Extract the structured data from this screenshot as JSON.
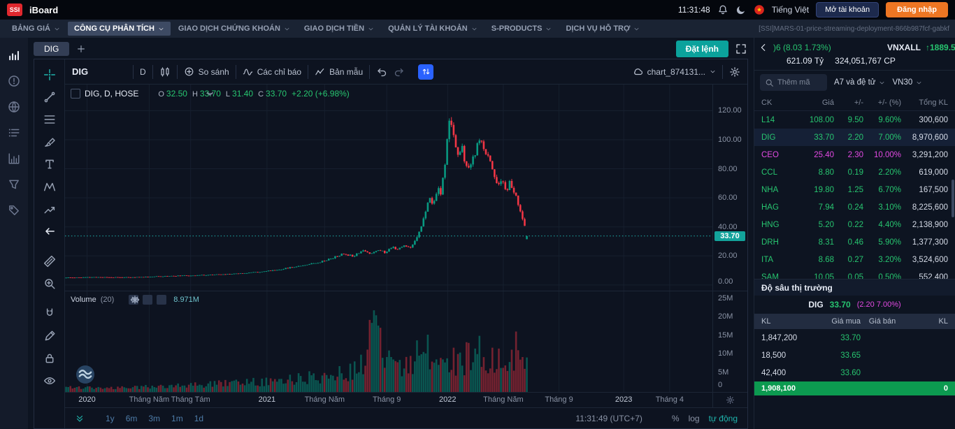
{
  "colors": {
    "accent": "#13a39b",
    "up": "#27c46f",
    "ceiling": "#e34ae3",
    "down": "#f23645",
    "candle_up": "#089981",
    "candle_down": "#f23645",
    "orange": "#ee7623"
  },
  "topbar": {
    "logo": "SSI",
    "app_name": "iBoard",
    "clock": "11:31:48",
    "language": "Tiếng Việt",
    "open_account": "Mở tài khoản",
    "login": "Đăng nhập"
  },
  "menubar": {
    "items": [
      "BẢNG GIÁ",
      "CÔNG CỤ PHÂN TÍCH",
      "GIAO DỊCH CHỨNG KHOÁN",
      "GIAO DỊCH TIỀN",
      "QUẢN LÝ TÀI KHOẢN",
      "S-PRODUCTS",
      "DỊCH VỤ HỖ TRỢ"
    ],
    "active_index": 1,
    "deployment_tag": "[SSI]MARS-01-price-streaming-deployment-866b987fcf-gabkf"
  },
  "sidebar": {
    "icons": [
      {
        "icon": "bars-signal",
        "name": "price-board-icon"
      },
      {
        "icon": "alert",
        "name": "alerts-icon"
      },
      {
        "icon": "globe",
        "name": "global-markets-icon"
      },
      {
        "icon": "rows",
        "name": "watchlist-icon"
      },
      {
        "icon": "chart-col",
        "name": "analysis-icon"
      },
      {
        "icon": "funnel",
        "name": "screener-icon"
      },
      {
        "icon": "tag",
        "name": "tags-icon"
      }
    ]
  },
  "chart_tabs": {
    "active_tab": "DIG",
    "order_button": "Đặt lệnh"
  },
  "chart_toolbar": {
    "symbol": "DIG",
    "interval": "D",
    "compare": "So sánh",
    "indicators": "Các chỉ báo",
    "templates": "Bản mẫu",
    "layout_name": "chart_874131..."
  },
  "draw_toolbar": {
    "groups": [
      [
        {
          "icon": "crosshair",
          "name": "crosshair-tool",
          "active": true
        },
        {
          "icon": "trendline",
          "name": "trend-line-tool"
        },
        {
          "icon": "fib",
          "name": "fib-retracement-tool"
        },
        {
          "icon": "brush",
          "name": "brush-tool"
        },
        {
          "icon": "text",
          "name": "text-tool"
        },
        {
          "icon": "xabcd",
          "name": "pattern-tool"
        },
        {
          "icon": "forecast",
          "name": "forecast-tool"
        },
        {
          "icon": "arrow-left",
          "name": "back-arrow-tool",
          "white": true
        }
      ],
      [
        {
          "icon": "ruler",
          "name": "measure-tool"
        },
        {
          "icon": "zoom",
          "name": "zoom-in-tool"
        }
      ],
      [
        {
          "icon": "magnet",
          "name": "magnet-tool"
        },
        {
          "icon": "pencil",
          "name": "edit-tool"
        },
        {
          "icon": "lock",
          "name": "lock-all-tool"
        },
        {
          "icon": "eye",
          "name": "hide-all-tool"
        }
      ]
    ]
  },
  "legend": {
    "title": "DIG, D, HOSE",
    "labels": [
      "O",
      "H",
      "L",
      "C"
    ],
    "o": "32.50",
    "h": "33.70",
    "l": "31.40",
    "c": "33.70",
    "change": "+2.20 (+6.98%)"
  },
  "volume_pane": {
    "label": "Volume",
    "period": "(20)",
    "value": "8.971M"
  },
  "bottom_bar": {
    "ranges": [
      "1y",
      "6m",
      "3m",
      "1m",
      "1d"
    ],
    "clock": "11:31:49 (UTC+7)",
    "percent": "%",
    "log": "log",
    "auto": "tự động"
  },
  "chart_data": {
    "type": "candlestick",
    "symbol": "DIG",
    "interval": "D",
    "exchange": "HOSE",
    "ohlc": {
      "open": 32.5,
      "high": 33.7,
      "low": 31.4,
      "close": 33.7,
      "change": 2.2,
      "change_pct": 6.98
    },
    "last_price": 33.7,
    "candle_count": 215,
    "t_end": 0.715,
    "price_gridlines": [
      0,
      20,
      40,
      60,
      80,
      100,
      120
    ],
    "price_axis": [
      {
        "label": "120.00",
        "v": 120
      },
      {
        "label": "100.00",
        "v": 100
      },
      {
        "label": "80.00",
        "v": 80
      },
      {
        "label": "60.00",
        "v": 60
      },
      {
        "label": "40.00",
        "v": 40
      },
      {
        "label": "20.00",
        "v": 20
      },
      {
        "label": "0.00",
        "v": 0
      }
    ],
    "volume_axis": [
      {
        "label": "25M",
        "v": 25
      },
      {
        "label": "20M",
        "v": 20
      },
      {
        "label": "15M",
        "v": 15
      },
      {
        "label": "10M",
        "v": 10
      },
      {
        "label": "5M",
        "v": 5
      },
      {
        "label": "0",
        "v": 0
      }
    ],
    "price_anchors": [
      [
        0,
        5
      ],
      [
        0.05,
        5.4
      ],
      [
        0.1,
        5.2
      ],
      [
        0.15,
        6
      ],
      [
        0.2,
        6.6
      ],
      [
        0.25,
        7.4
      ],
      [
        0.3,
        9
      ],
      [
        0.33,
        10.5
      ],
      [
        0.36,
        13
      ],
      [
        0.39,
        15.5
      ],
      [
        0.41,
        18
      ],
      [
        0.43,
        21.5
      ],
      [
        0.445,
        20
      ],
      [
        0.46,
        24
      ],
      [
        0.47,
        21.5
      ],
      [
        0.485,
        24.5
      ],
      [
        0.495,
        22
      ],
      [
        0.505,
        26.5
      ],
      [
        0.515,
        24.5
      ],
      [
        0.525,
        27.5
      ],
      [
        0.532,
        25.5
      ],
      [
        0.54,
        30
      ],
      [
        0.548,
        38
      ],
      [
        0.556,
        48
      ],
      [
        0.563,
        60
      ],
      [
        0.569,
        55
      ],
      [
        0.575,
        67
      ],
      [
        0.58,
        62
      ],
      [
        0.585,
        76
      ],
      [
        0.589,
        92
      ],
      [
        0.592,
        106
      ],
      [
        0.595,
        117
      ],
      [
        0.599,
        108
      ],
      [
        0.603,
        97
      ],
      [
        0.608,
        87
      ],
      [
        0.613,
        94
      ],
      [
        0.618,
        85
      ],
      [
        0.623,
        78
      ],
      [
        0.63,
        87
      ],
      [
        0.637,
        95
      ],
      [
        0.643,
        99
      ],
      [
        0.649,
        93
      ],
      [
        0.655,
        87
      ],
      [
        0.66,
        80
      ],
      [
        0.665,
        74
      ],
      [
        0.67,
        68
      ],
      [
        0.676,
        72
      ],
      [
        0.682,
        66
      ],
      [
        0.688,
        71
      ],
      [
        0.694,
        63
      ],
      [
        0.7,
        56
      ],
      [
        0.705,
        48
      ],
      [
        0.71,
        40
      ],
      [
        0.715,
        33.7
      ]
    ],
    "volume_anchors": [
      [
        0,
        1.2
      ],
      [
        0.08,
        0.9
      ],
      [
        0.15,
        1.5
      ],
      [
        0.22,
        2.2
      ],
      [
        0.28,
        2.8
      ],
      [
        0.33,
        3.5
      ],
      [
        0.38,
        4.5
      ],
      [
        0.42,
        6
      ],
      [
        0.45,
        8
      ],
      [
        0.465,
        10
      ],
      [
        0.478,
        24.5
      ],
      [
        0.484,
        19
      ],
      [
        0.49,
        13
      ],
      [
        0.5,
        9.5
      ],
      [
        0.52,
        8
      ],
      [
        0.54,
        11
      ],
      [
        0.56,
        13
      ],
      [
        0.58,
        9
      ],
      [
        0.6,
        10
      ],
      [
        0.62,
        12
      ],
      [
        0.64,
        13.5
      ],
      [
        0.66,
        10
      ],
      [
        0.68,
        12
      ],
      [
        0.7,
        14
      ],
      [
        0.71,
        11
      ],
      [
        0.715,
        9
      ]
    ],
    "time_labels": [
      {
        "label": "2020",
        "f": 0.034,
        "year": true
      },
      {
        "label": "Tháng Năm",
        "f": 0.13
      },
      {
        "label": "Tháng Tám",
        "f": 0.194
      },
      {
        "label": "2021",
        "f": 0.312,
        "year": true
      },
      {
        "label": "Tháng Năm",
        "f": 0.401
      },
      {
        "label": "Tháng 9",
        "f": 0.497
      },
      {
        "label": "2022",
        "f": 0.591,
        "year": true
      },
      {
        "label": "Tháng Năm",
        "f": 0.677
      },
      {
        "label": "Tháng 9",
        "f": 0.763
      },
      {
        "label": "2023",
        "f": 0.863,
        "year": true
      },
      {
        "label": "Tháng 4",
        "f": 0.934
      }
    ]
  },
  "right_panel": {
    "index": {
      "ticker_text": ")6 (8.03 1.73%)",
      "name": "VNXALL",
      "value": "↑1889.5",
      "line2_a": "621.09 Tỷ",
      "line2_b": "324,051,767 CP"
    },
    "watchlist": {
      "search_placeholder": "Thêm mã",
      "group": "A7 và đệ tử",
      "group2": "VN30",
      "columns": [
        "CK",
        "Giá",
        "+/-",
        "+/- (%)",
        "Tổng KL"
      ],
      "rows": [
        {
          "ck": "L14",
          "gia": "108.00",
          "chg": "9.50",
          "pct": "9.60%",
          "kl": "300,600",
          "state": "up"
        },
        {
          "ck": "DIG",
          "gia": "33.70",
          "chg": "2.20",
          "pct": "7.00%",
          "kl": "8,970,600",
          "state": "up",
          "highlight": true
        },
        {
          "ck": "CEO",
          "gia": "25.40",
          "chg": "2.30",
          "pct": "10.00%",
          "kl": "3,291,200",
          "state": "ceil"
        },
        {
          "ck": "CCL",
          "gia": "8.80",
          "chg": "0.19",
          "pct": "2.20%",
          "kl": "619,000",
          "state": "up"
        },
        {
          "ck": "NHA",
          "gia": "19.80",
          "chg": "1.25",
          "pct": "6.70%",
          "kl": "167,500",
          "state": "up"
        },
        {
          "ck": "HAG",
          "gia": "7.94",
          "chg": "0.24",
          "pct": "3.10%",
          "kl": "8,225,600",
          "state": "up"
        },
        {
          "ck": "HNG",
          "gia": "5.20",
          "chg": "0.22",
          "pct": "4.40%",
          "kl": "2,138,900",
          "state": "up"
        },
        {
          "ck": "DRH",
          "gia": "8.31",
          "chg": "0.46",
          "pct": "5.90%",
          "kl": "1,377,300",
          "state": "up"
        },
        {
          "ck": "ITA",
          "gia": "8.68",
          "chg": "0.27",
          "pct": "3.20%",
          "kl": "3,524,600",
          "state": "up"
        },
        {
          "ck": "SAM",
          "gia": "10.05",
          "chg": "0.05",
          "pct": "0.50%",
          "kl": "552,400",
          "state": "up"
        }
      ]
    },
    "depth": {
      "title": "Độ sâu thị trường",
      "symbol": "DIG",
      "price": "33.70",
      "change": "(2.20 7.00%)",
      "columns": [
        "KL",
        "Giá mua",
        "Giá bán",
        "KL"
      ],
      "rows": [
        {
          "buy_kl": "1,847,200",
          "buy_price": "33.70",
          "sell_price": "",
          "sell_kl": ""
        },
        {
          "buy_kl": "18,500",
          "buy_price": "33.65",
          "sell_price": "",
          "sell_kl": ""
        },
        {
          "buy_kl": "42,400",
          "buy_price": "33.60",
          "sell_price": "",
          "sell_kl": ""
        }
      ],
      "total_buy": "1,908,100",
      "total_sell": "0"
    }
  }
}
